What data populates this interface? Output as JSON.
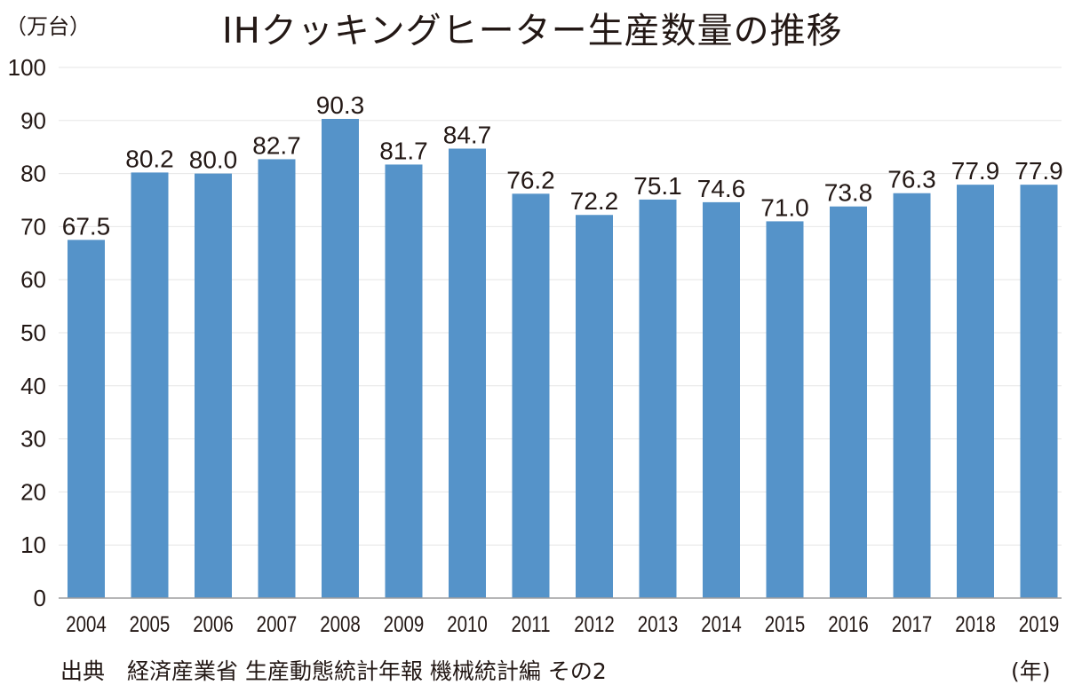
{
  "chart_data": {
    "type": "bar",
    "title": "IHクッキングヒーター生産数量の推移",
    "ylabel": "（万台）",
    "xlabel": "(年)",
    "source": "出典　経済産業省 生産動態統計年報 機械統計編 その2",
    "categories": [
      "2004",
      "2005",
      "2006",
      "2007",
      "2008",
      "2009",
      "2010",
      "2011",
      "2012",
      "2013",
      "2014",
      "2015",
      "2016",
      "2017",
      "2018",
      "2019"
    ],
    "values": [
      67.5,
      80.2,
      80.0,
      82.7,
      90.3,
      81.7,
      84.7,
      76.2,
      72.2,
      75.1,
      74.6,
      71.0,
      73.8,
      76.3,
      77.9,
      77.9
    ],
    "value_labels": [
      "67.5",
      "80.2",
      "80.0",
      "82.7",
      "90.3",
      "81.7",
      "84.7",
      "76.2",
      "72.2",
      "75.1",
      "74.6",
      "71.0",
      "73.8",
      "76.3",
      "77.9",
      "77.9"
    ],
    "yticks": [
      "0",
      "10",
      "20",
      "30",
      "40",
      "50",
      "60",
      "70",
      "80",
      "90",
      "100"
    ],
    "ylim": [
      0,
      100
    ],
    "grid": true,
    "legend": "none",
    "bar_color": "#5593c9",
    "grid_color": "#e6e6e6"
  }
}
